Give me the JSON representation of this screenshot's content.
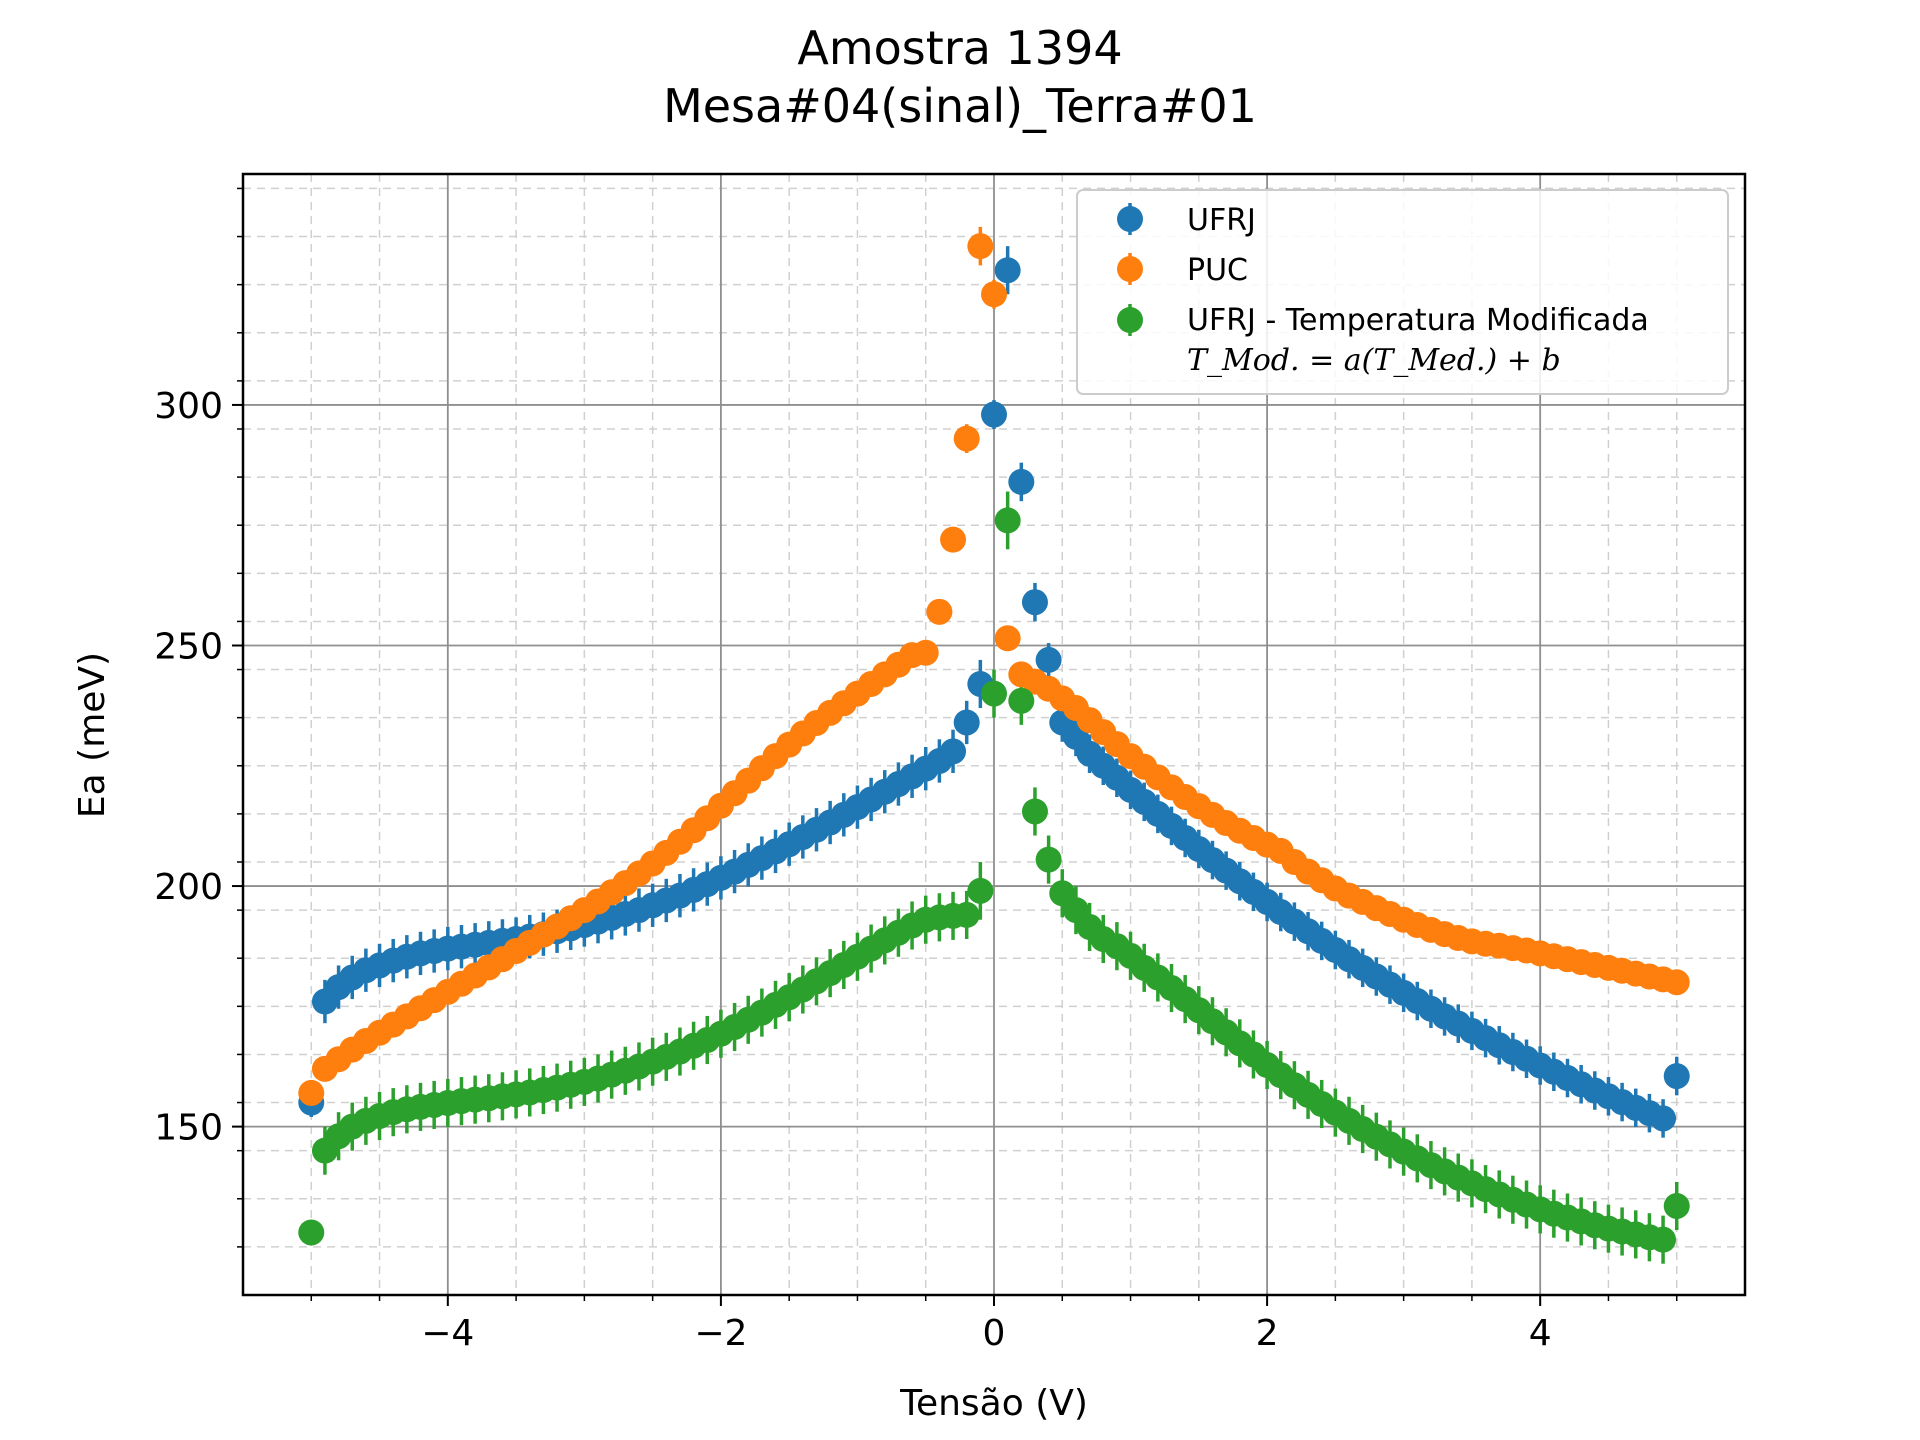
{
  "chart_data": {
    "type": "scatter",
    "title": "Amostra 1394",
    "subtitle": "Mesa#04(sinal)_Terra#01",
    "xlabel": "Tensão (V)",
    "ylabel": "Ea (meV)",
    "xlim": [
      -5.5,
      5.5
    ],
    "ylim": [
      115,
      348
    ],
    "xticks": [
      -4,
      -2,
      0,
      2,
      4
    ],
    "xtick_labels": [
      "−4",
      "−2",
      "0",
      "2",
      "4"
    ],
    "yticks": [
      150,
      200,
      250,
      300
    ],
    "ytick_labels": [
      "150",
      "200",
      "250",
      "300"
    ],
    "grid": true,
    "error_bars": true,
    "legend_position": "top-right",
    "legend_formula": "T_Mod. = a(T_Med.) + b",
    "colors": {
      "UFRJ": "#1f77b4",
      "PUC": "#ff7f0e",
      "UFRJ - Temperatura Modificada": "#2ca02c"
    },
    "series": [
      {
        "name": "UFRJ",
        "color": "#1f77b4",
        "x": [
          -5.0,
          -4.9,
          -4.8,
          -4.7,
          -4.6,
          -4.5,
          -4.4,
          -4.3,
          -4.2,
          -4.1,
          -4.0,
          -3.9,
          -3.8,
          -3.7,
          -3.6,
          -3.5,
          -3.4,
          -3.3,
          -3.2,
          -3.1,
          -3.0,
          -2.9,
          -2.8,
          -2.7,
          -2.6,
          -2.5,
          -2.4,
          -2.3,
          -2.2,
          -2.1,
          -2.0,
          -1.9,
          -1.8,
          -1.7,
          -1.6,
          -1.5,
          -1.4,
          -1.3,
          -1.2,
          -1.1,
          -1.0,
          -0.9,
          -0.8,
          -0.7,
          -0.6,
          -0.5,
          -0.4,
          -0.3,
          -0.2,
          -0.1,
          0.0,
          0.1,
          0.2,
          0.3,
          0.4,
          0.5,
          0.6,
          0.7,
          0.8,
          0.9,
          1.0,
          1.1,
          1.2,
          1.3,
          1.4,
          1.5,
          1.6,
          1.7,
          1.8,
          1.9,
          2.0,
          2.1,
          2.2,
          2.3,
          2.4,
          2.5,
          2.6,
          2.7,
          2.8,
          2.9,
          3.0,
          3.1,
          3.2,
          3.3,
          3.4,
          3.5,
          3.6,
          3.7,
          3.8,
          3.9,
          4.0,
          4.1,
          4.2,
          4.3,
          4.4,
          4.5,
          4.6,
          4.7,
          4.8,
          4.9,
          5.0
        ],
        "y": [
          155.0,
          176.0,
          179.0,
          181.0,
          182.5,
          183.5,
          184.5,
          185.3,
          186.0,
          186.5,
          187.0,
          187.4,
          187.8,
          188.2,
          188.6,
          189.0,
          189.5,
          190.0,
          190.6,
          191.2,
          191.9,
          192.6,
          193.4,
          194.2,
          195.0,
          196.0,
          197.0,
          198.0,
          199.2,
          200.4,
          201.7,
          203.0,
          204.4,
          205.8,
          207.2,
          208.7,
          210.2,
          211.7,
          213.2,
          214.8,
          216.4,
          218.0,
          219.6,
          221.2,
          222.8,
          224.4,
          226.0,
          228.0,
          234.0,
          242.0,
          298.0,
          328.0,
          284.0,
          259.0,
          247.0,
          234.0,
          231.0,
          227.5,
          225.0,
          222.5,
          220.0,
          217.5,
          215.0,
          212.5,
          210.0,
          207.7,
          205.4,
          203.2,
          201.0,
          198.8,
          196.7,
          194.6,
          192.6,
          190.6,
          188.6,
          186.7,
          184.8,
          183.0,
          181.2,
          179.5,
          177.8,
          176.1,
          174.5,
          172.9,
          171.4,
          169.9,
          168.4,
          166.9,
          165.5,
          164.1,
          162.7,
          161.4,
          160.1,
          158.8,
          157.5,
          156.3,
          155.1,
          153.9,
          152.8,
          151.7,
          160.5
        ],
        "err": [
          3.0,
          4.5,
          4.5,
          4.5,
          4.5,
          4.5,
          4.5,
          4.5,
          4.5,
          4.5,
          4.5,
          4.5,
          4.5,
          4.5,
          4.5,
          4.5,
          4.5,
          4.5,
          4.5,
          4.5,
          4.5,
          4.5,
          4.5,
          4.5,
          4.5,
          4.5,
          4.5,
          4.5,
          4.5,
          4.5,
          4.5,
          4.5,
          4.5,
          4.5,
          4.5,
          4.5,
          4.5,
          4.5,
          4.5,
          4.5,
          4.5,
          4.5,
          4.5,
          4.5,
          4.5,
          4.5,
          4.5,
          4.5,
          4.5,
          5.0,
          3.0,
          5.0,
          4.0,
          4.0,
          3.5,
          4.0,
          4.0,
          4.0,
          4.0,
          4.0,
          4.0,
          4.0,
          4.0,
          4.0,
          4.0,
          4.0,
          4.0,
          4.0,
          4.0,
          4.0,
          4.0,
          4.0,
          4.0,
          4.0,
          4.0,
          4.0,
          4.0,
          4.0,
          4.0,
          4.0,
          4.0,
          4.0,
          4.0,
          4.0,
          4.0,
          4.0,
          4.0,
          4.0,
          4.0,
          4.0,
          4.0,
          4.0,
          4.0,
          4.0,
          4.0,
          4.0,
          4.0,
          4.0,
          4.0,
          4.0,
          4.0
        ]
      },
      {
        "name": "PUC",
        "color": "#ff7f0e",
        "x": [
          -5.0,
          -4.9,
          -4.8,
          -4.7,
          -4.6,
          -4.5,
          -4.4,
          -4.3,
          -4.2,
          -4.1,
          -4.0,
          -3.9,
          -3.8,
          -3.7,
          -3.6,
          -3.5,
          -3.4,
          -3.3,
          -3.2,
          -3.1,
          -3.0,
          -2.9,
          -2.8,
          -2.7,
          -2.6,
          -2.5,
          -2.4,
          -2.3,
          -2.2,
          -2.1,
          -2.0,
          -1.9,
          -1.8,
          -1.7,
          -1.6,
          -1.5,
          -1.4,
          -1.3,
          -1.2,
          -1.1,
          -1.0,
          -0.9,
          -0.8,
          -0.7,
          -0.6,
          -0.5,
          -0.4,
          -0.3,
          -0.2,
          -0.1,
          0.0,
          0.1,
          0.2,
          0.3,
          0.4,
          0.5,
          0.6,
          0.7,
          0.8,
          0.9,
          1.0,
          1.1,
          1.2,
          1.3,
          1.4,
          1.5,
          1.6,
          1.7,
          1.8,
          1.9,
          2.0,
          2.1,
          2.2,
          2.3,
          2.4,
          2.5,
          2.6,
          2.7,
          2.8,
          2.9,
          3.0,
          3.1,
          3.2,
          3.3,
          3.4,
          3.5,
          3.6,
          3.7,
          3.8,
          3.9,
          4.0,
          4.1,
          4.2,
          4.3,
          4.4,
          4.5,
          4.6,
          4.7,
          4.8,
          4.9,
          5.0
        ],
        "y": [
          157.0,
          162.0,
          164.0,
          166.0,
          167.8,
          169.5,
          171.2,
          172.9,
          174.6,
          176.3,
          178.0,
          179.7,
          181.4,
          183.1,
          184.8,
          186.5,
          188.2,
          189.9,
          191.6,
          193.3,
          195.0,
          196.8,
          198.7,
          200.6,
          202.6,
          204.7,
          206.9,
          209.2,
          211.6,
          214.1,
          216.7,
          219.3,
          221.9,
          224.5,
          227.0,
          229.4,
          231.7,
          233.9,
          236.0,
          238.0,
          240.0,
          242.0,
          244.0,
          246.0,
          248.0,
          248.5,
          257.0,
          272.0,
          293.0,
          333.0,
          323.0,
          251.5,
          244.0,
          242.5,
          241.0,
          239.0,
          237.0,
          234.5,
          232.0,
          229.5,
          227.0,
          224.8,
          222.6,
          220.5,
          218.5,
          216.6,
          214.8,
          213.1,
          211.5,
          210.0,
          208.6,
          207.3,
          205.0,
          203.0,
          201.2,
          199.5,
          198.0,
          196.7,
          195.4,
          194.2,
          193.0,
          191.9,
          190.9,
          190.0,
          189.2,
          188.5,
          188.0,
          187.6,
          187.1,
          186.6,
          186.0,
          185.4,
          184.8,
          184.2,
          183.6,
          183.0,
          182.4,
          181.8,
          181.2,
          180.6,
          180.0
        ],
        "err": [
          2.5,
          2.5,
          2.5,
          2.5,
          2.5,
          2.5,
          2.5,
          2.5,
          2.5,
          2.5,
          2.5,
          2.5,
          2.5,
          2.5,
          2.5,
          2.5,
          2.5,
          2.5,
          2.5,
          2.5,
          2.5,
          2.5,
          2.5,
          2.5,
          2.5,
          2.5,
          2.5,
          2.5,
          2.5,
          2.5,
          2.5,
          2.5,
          2.5,
          2.5,
          2.5,
          2.5,
          2.5,
          2.5,
          2.5,
          2.5,
          2.5,
          2.5,
          2.5,
          2.5,
          2.5,
          2.5,
          2.5,
          2.5,
          3.0,
          4.0,
          3.0,
          2.5,
          2.5,
          2.5,
          2.5,
          2.5,
          2.5,
          2.5,
          2.5,
          2.5,
          2.5,
          2.5,
          2.5,
          2.5,
          2.5,
          2.5,
          2.5,
          2.5,
          2.5,
          2.5,
          2.5,
          2.5,
          2.5,
          2.5,
          2.5,
          2.5,
          2.5,
          2.5,
          2.5,
          2.5,
          2.5,
          2.5,
          2.5,
          2.5,
          2.5,
          2.5,
          2.5,
          2.5,
          2.5,
          2.5,
          2.5,
          2.5,
          2.5,
          2.5,
          2.5,
          2.5,
          2.5,
          2.5,
          2.5,
          2.5,
          2.5
        ]
      },
      {
        "name": "UFRJ - Temperatura Modificada",
        "color": "#2ca02c",
        "x": [
          -5.0,
          -4.9,
          -4.8,
          -4.7,
          -4.6,
          -4.5,
          -4.4,
          -4.3,
          -4.2,
          -4.1,
          -4.0,
          -3.9,
          -3.8,
          -3.7,
          -3.6,
          -3.5,
          -3.4,
          -3.3,
          -3.2,
          -3.1,
          -3.0,
          -2.9,
          -2.8,
          -2.7,
          -2.6,
          -2.5,
          -2.4,
          -2.3,
          -2.2,
          -2.1,
          -2.0,
          -1.9,
          -1.8,
          -1.7,
          -1.6,
          -1.5,
          -1.4,
          -1.3,
          -1.2,
          -1.1,
          -1.0,
          -0.9,
          -0.8,
          -0.7,
          -0.6,
          -0.5,
          -0.4,
          -0.3,
          -0.2,
          -0.1,
          0.0,
          0.1,
          0.2,
          0.3,
          0.4,
          0.5,
          0.6,
          0.7,
          0.8,
          0.9,
          1.0,
          1.1,
          1.2,
          1.3,
          1.4,
          1.5,
          1.6,
          1.7,
          1.8,
          1.9,
          2.0,
          2.1,
          2.2,
          2.3,
          2.4,
          2.5,
          2.6,
          2.7,
          2.8,
          2.9,
          3.0,
          3.1,
          3.2,
          3.3,
          3.4,
          3.5,
          3.6,
          3.7,
          3.8,
          3.9,
          4.0,
          4.1,
          4.2,
          4.3,
          4.4,
          4.5,
          4.6,
          4.7,
          4.8,
          4.9,
          5.0
        ],
        "y": [
          128.0,
          145.0,
          148.0,
          150.0,
          151.2,
          152.2,
          153.0,
          153.6,
          154.1,
          154.5,
          154.9,
          155.3,
          155.6,
          155.9,
          156.3,
          156.7,
          157.1,
          157.6,
          158.1,
          158.7,
          159.3,
          160.0,
          160.8,
          161.6,
          162.5,
          163.5,
          164.5,
          165.6,
          166.8,
          168.0,
          169.3,
          170.7,
          172.2,
          173.7,
          175.3,
          176.9,
          178.5,
          180.2,
          181.9,
          183.6,
          185.3,
          187.0,
          188.7,
          190.3,
          191.8,
          193.0,
          193.5,
          193.8,
          194.0,
          199.0,
          240.0,
          276.0,
          238.5,
          215.5,
          205.5,
          198.5,
          195.0,
          191.5,
          189.0,
          187.5,
          185.5,
          183.0,
          181.0,
          178.8,
          176.5,
          174.2,
          171.9,
          169.6,
          167.3,
          165.0,
          162.8,
          160.7,
          158.6,
          156.6,
          154.7,
          152.9,
          151.2,
          149.5,
          147.9,
          146.3,
          144.8,
          143.4,
          142.0,
          140.7,
          139.4,
          138.2,
          137.0,
          135.9,
          134.8,
          133.8,
          132.8,
          131.9,
          131.1,
          130.3,
          129.5,
          128.8,
          128.2,
          127.6,
          127.0,
          126.5,
          133.5
        ],
        "err": [
          2.5,
          5.0,
          5.0,
          5.0,
          5.0,
          5.0,
          5.0,
          5.0,
          5.0,
          5.0,
          5.0,
          5.0,
          5.0,
          5.0,
          5.0,
          5.0,
          5.0,
          5.0,
          5.0,
          5.0,
          5.0,
          5.0,
          5.0,
          5.0,
          5.0,
          5.0,
          5.0,
          5.0,
          5.0,
          5.0,
          5.0,
          5.0,
          5.0,
          5.0,
          5.0,
          5.0,
          5.0,
          5.0,
          5.0,
          5.0,
          5.0,
          5.0,
          5.0,
          5.0,
          5.0,
          5.0,
          5.0,
          5.0,
          5.0,
          6.0,
          5.0,
          6.0,
          5.0,
          5.0,
          5.0,
          5.0,
          5.0,
          5.0,
          5.0,
          5.0,
          5.0,
          5.0,
          5.0,
          5.0,
          5.0,
          5.0,
          5.0,
          5.0,
          5.0,
          5.0,
          5.0,
          5.0,
          5.0,
          5.0,
          5.0,
          5.0,
          5.0,
          5.0,
          5.0,
          5.0,
          5.0,
          5.0,
          5.0,
          5.0,
          5.0,
          5.0,
          5.0,
          5.0,
          5.0,
          5.0,
          5.0,
          5.0,
          5.0,
          5.0,
          5.0,
          5.0,
          5.0,
          5.0,
          5.0,
          5.0,
          5.0
        ]
      }
    ]
  }
}
